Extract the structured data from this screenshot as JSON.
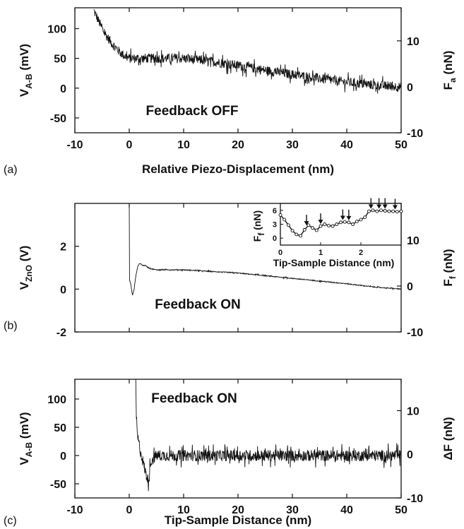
{
  "chart_data": [
    {
      "panel_label": "(a)",
      "type": "line",
      "annotation": "Feedback OFF",
      "xlabel": "Relative Piezo-Displacement (nm)",
      "ylabel_left": {
        "main": "V",
        "sub": "A-B",
        "rest": " (mV)"
      },
      "ylabel_right": {
        "main": "F",
        "sub": "a",
        "rest": " (nN)"
      },
      "xlim": [
        -10,
        50
      ],
      "ylim": [
        -75,
        135
      ],
      "y2lim": [
        -10,
        17.2
      ],
      "xticks": [
        -10,
        0,
        10,
        20,
        30,
        40,
        50
      ],
      "xtick_labels": [
        "-10",
        "0",
        "10",
        "20",
        "30",
        "40",
        "50"
      ],
      "yticks": [
        -50,
        0,
        50,
        100
      ],
      "ytick_labels": [
        "-50",
        "0",
        "50",
        "100"
      ],
      "y2ticks": [
        -10,
        0,
        10
      ],
      "y2tick_labels": [
        "-10",
        "0",
        "10"
      ],
      "series": [
        {
          "trend": {
            "x": [
              -6.5,
              -5,
              -4,
              -3,
              -2,
              -1,
              0,
              5,
              10,
              15,
              20,
              25,
              30,
              35,
              40,
              45,
              50
            ],
            "y": [
              130,
              100,
              85,
              73,
              63,
              55,
              50,
              50,
              50,
              45,
              38,
              30,
              23,
              16,
              10,
              5,
              2
            ]
          },
          "noise": 8
        }
      ]
    },
    {
      "panel_label": "(b)",
      "type": "line",
      "annotation": "Feedback ON",
      "xlabel": "",
      "ylabel_left": {
        "main": "V",
        "sub": "ZnO",
        "rest": " (V)"
      },
      "ylabel_right": {
        "main": "F",
        "sub": "f",
        "rest": " (nN)"
      },
      "xlim": [
        -10,
        50
      ],
      "ylim": [
        -2,
        4
      ],
      "y2lim": [
        -10,
        18
      ],
      "xticks": [
        -10,
        0,
        10,
        20,
        30,
        40,
        50
      ],
      "xtick_labels": [],
      "yticks": [
        -2,
        0,
        2
      ],
      "ytick_labels": [
        "-2",
        "0",
        "2"
      ],
      "y2ticks": [
        -10,
        0,
        10
      ],
      "y2tick_labels": [
        "-10",
        "0",
        "10"
      ],
      "series": [
        {
          "trend": {
            "x": [
              0,
              0,
              0.3,
              0.6,
              0.9,
              1.2,
              1.6,
              2.0,
              2.5,
              3.0,
              3.5,
              4,
              5,
              10,
              20,
              30,
              40,
              45,
              50
            ],
            "y": [
              4,
              0.5,
              0.2,
              -0.3,
              0.0,
              0.6,
              1.1,
              1.2,
              1.1,
              1.1,
              1.0,
              0.95,
              0.9,
              0.9,
              0.75,
              0.5,
              0.25,
              0.1,
              0.0
            ]
          },
          "noise": 0.02
        }
      ],
      "inset": {
        "xlabel": "Tip-Sample Distance (nm)",
        "ylabel": {
          "main": "F",
          "sub": "f",
          "rest": " (nN)"
        },
        "xlim": [
          0,
          3
        ],
        "ylim": [
          -1.5,
          7.5
        ],
        "xticks": [
          0,
          1,
          2
        ],
        "xtick_labels": [
          "0",
          "1",
          "2"
        ],
        "yticks": [
          0,
          3,
          6
        ],
        "ytick_labels": [
          "0",
          "3",
          "6"
        ],
        "x": [
          0,
          0.1,
          0.2,
          0.3,
          0.4,
          0.5,
          0.6,
          0.7,
          0.8,
          0.9,
          1.0,
          1.1,
          1.2,
          1.3,
          1.4,
          1.5,
          1.6,
          1.7,
          1.8,
          1.9,
          2.0,
          2.1,
          2.2,
          2.3,
          2.4,
          2.5,
          2.6,
          2.7,
          2.8,
          2.9,
          3.0
        ],
        "y": [
          5.0,
          4.0,
          2.8,
          1.6,
          0.8,
          0.5,
          1.8,
          2.8,
          2.2,
          1.7,
          2.6,
          3.0,
          2.7,
          2.6,
          3.0,
          3.4,
          3.5,
          3.4,
          3.0,
          3.6,
          4.0,
          4.5,
          5.8,
          6.0,
          5.8,
          6.0,
          5.9,
          5.8,
          5.8,
          5.7,
          5.8
        ],
        "arrows_x": [
          0.65,
          1.0,
          1.55,
          1.7,
          2.25,
          2.45,
          2.6,
          2.85
        ]
      }
    },
    {
      "panel_label": "(c)",
      "type": "line",
      "annotation": "Feedback ON",
      "xlabel": "Tip-Sample Distance (nm)",
      "ylabel_left": {
        "main": "V",
        "sub": "A-B",
        "rest": " (mV)"
      },
      "ylabel_right": {
        "main": "ΔF",
        "sub": "",
        "rest": " (nN)"
      },
      "xlim": [
        -10,
        50
      ],
      "ylim": [
        -75,
        135
      ],
      "y2lim": [
        -10,
        17.2
      ],
      "xticks": [
        -10,
        0,
        10,
        20,
        30,
        40,
        50
      ],
      "xtick_labels": [
        "-10",
        "0",
        "10",
        "20",
        "30",
        "40",
        "50"
      ],
      "yticks": [
        -50,
        0,
        50,
        100
      ],
      "ytick_labels": [
        "-50",
        "0",
        "50",
        "100"
      ],
      "y2ticks": [
        -10,
        0,
        10
      ],
      "y2tick_labels": [
        "-10",
        "0",
        "10"
      ],
      "series": [
        {
          "trend": {
            "x": [
              1.2,
              1.3,
              1.5,
              2,
              2.5,
              3,
              3.5,
              4,
              5,
              10,
              20,
              30,
              40,
              50
            ],
            "y": [
              130,
              70,
              35,
              10,
              -10,
              -30,
              -45,
              -10,
              0,
              0,
              0,
              0,
              0,
              0
            ]
          },
          "noise": 10
        }
      ]
    }
  ]
}
